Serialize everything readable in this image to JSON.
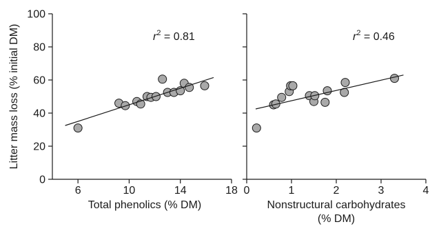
{
  "chart_data": [
    {
      "type": "scatter",
      "ylabel": "Litter mass loss (% initial DM)",
      "xlabel": "Total phenolics (% DM)",
      "xlim": [
        4,
        18
      ],
      "ylim": [
        0,
        100
      ],
      "x_ticks": [
        "6",
        "10",
        "14",
        "18"
      ],
      "y_ticks": [
        "0",
        "20",
        "40",
        "60",
        "80",
        "100"
      ],
      "annotation": {
        "prefix": "r",
        "sup": "2",
        "suffix": " = 0.81"
      },
      "grid": false,
      "points": [
        [
          6.0,
          31
        ],
        [
          9.2,
          46
        ],
        [
          9.7,
          44.5
        ],
        [
          10.6,
          47
        ],
        [
          10.9,
          45.5
        ],
        [
          11.4,
          50
        ],
        [
          11.7,
          49.5
        ],
        [
          12.1,
          50
        ],
        [
          12.6,
          60.5
        ],
        [
          13.0,
          52.5
        ],
        [
          13.5,
          52.5
        ],
        [
          14.0,
          53.5
        ],
        [
          14.3,
          58
        ],
        [
          14.7,
          55.5
        ],
        [
          15.9,
          56.5
        ]
      ],
      "fit_line": [
        [
          5,
          32.5
        ],
        [
          16.6,
          61.5
        ]
      ]
    },
    {
      "type": "scatter",
      "ylabel": "",
      "xlabel": "Nonstructural carbohydrates (% DM)",
      "xlim": [
        0,
        4
      ],
      "ylim": [
        0,
        100
      ],
      "x_ticks": [
        "0",
        "1",
        "2",
        "3",
        "4"
      ],
      "annotation": {
        "prefix": "r",
        "sup": "2",
        "suffix": " = 0.46"
      },
      "grid": false,
      "points": [
        [
          0.22,
          31
        ],
        [
          0.6,
          45
        ],
        [
          0.65,
          45.5
        ],
        [
          0.78,
          49.5
        ],
        [
          0.95,
          53
        ],
        [
          0.98,
          56.5
        ],
        [
          1.03,
          56.5
        ],
        [
          1.4,
          50.5
        ],
        [
          1.5,
          47
        ],
        [
          1.52,
          50.5
        ],
        [
          1.75,
          46.5
        ],
        [
          1.8,
          53.5
        ],
        [
          2.18,
          52.5
        ],
        [
          2.2,
          58.5
        ],
        [
          3.3,
          61
        ]
      ],
      "fit_line": [
        [
          0.2,
          42.5
        ],
        [
          3.5,
          63
        ]
      ]
    }
  ]
}
